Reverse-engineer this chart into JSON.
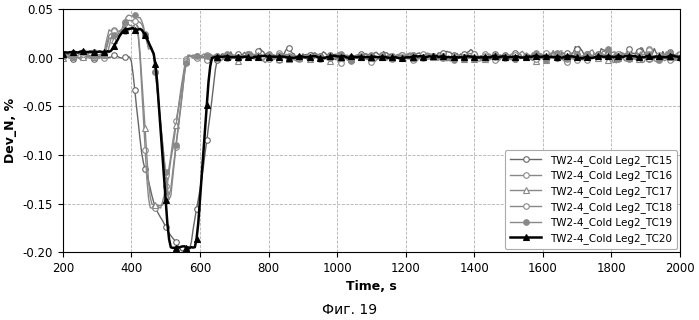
{
  "title": "",
  "xlabel": "Time, s",
  "ylabel": "Dev_N, %",
  "caption": "Фиг. 19",
  "xlim": [
    200,
    2000
  ],
  "ylim": [
    -0.2,
    0.05
  ],
  "yticks": [
    0.05,
    0.0,
    -0.05,
    -0.1,
    -0.15,
    -0.2
  ],
  "xticks": [
    200,
    400,
    600,
    800,
    1000,
    1200,
    1400,
    1600,
    1800,
    2000
  ],
  "legend_labels": [
    "TW2-4_Cold Leg2_TC15",
    "TW2-4_Cold Leg2_TC16",
    "TW2-4_Cold Leg2_TC17",
    "TW2-4_Cold Leg2_TC18",
    "TW2-4_Cold Leg2_TC19",
    "TW2-4_Cold Leg2_TC20"
  ],
  "background_color": "#ffffff",
  "grid_color": "#aaaaaa",
  "grid_linestyle": "--"
}
